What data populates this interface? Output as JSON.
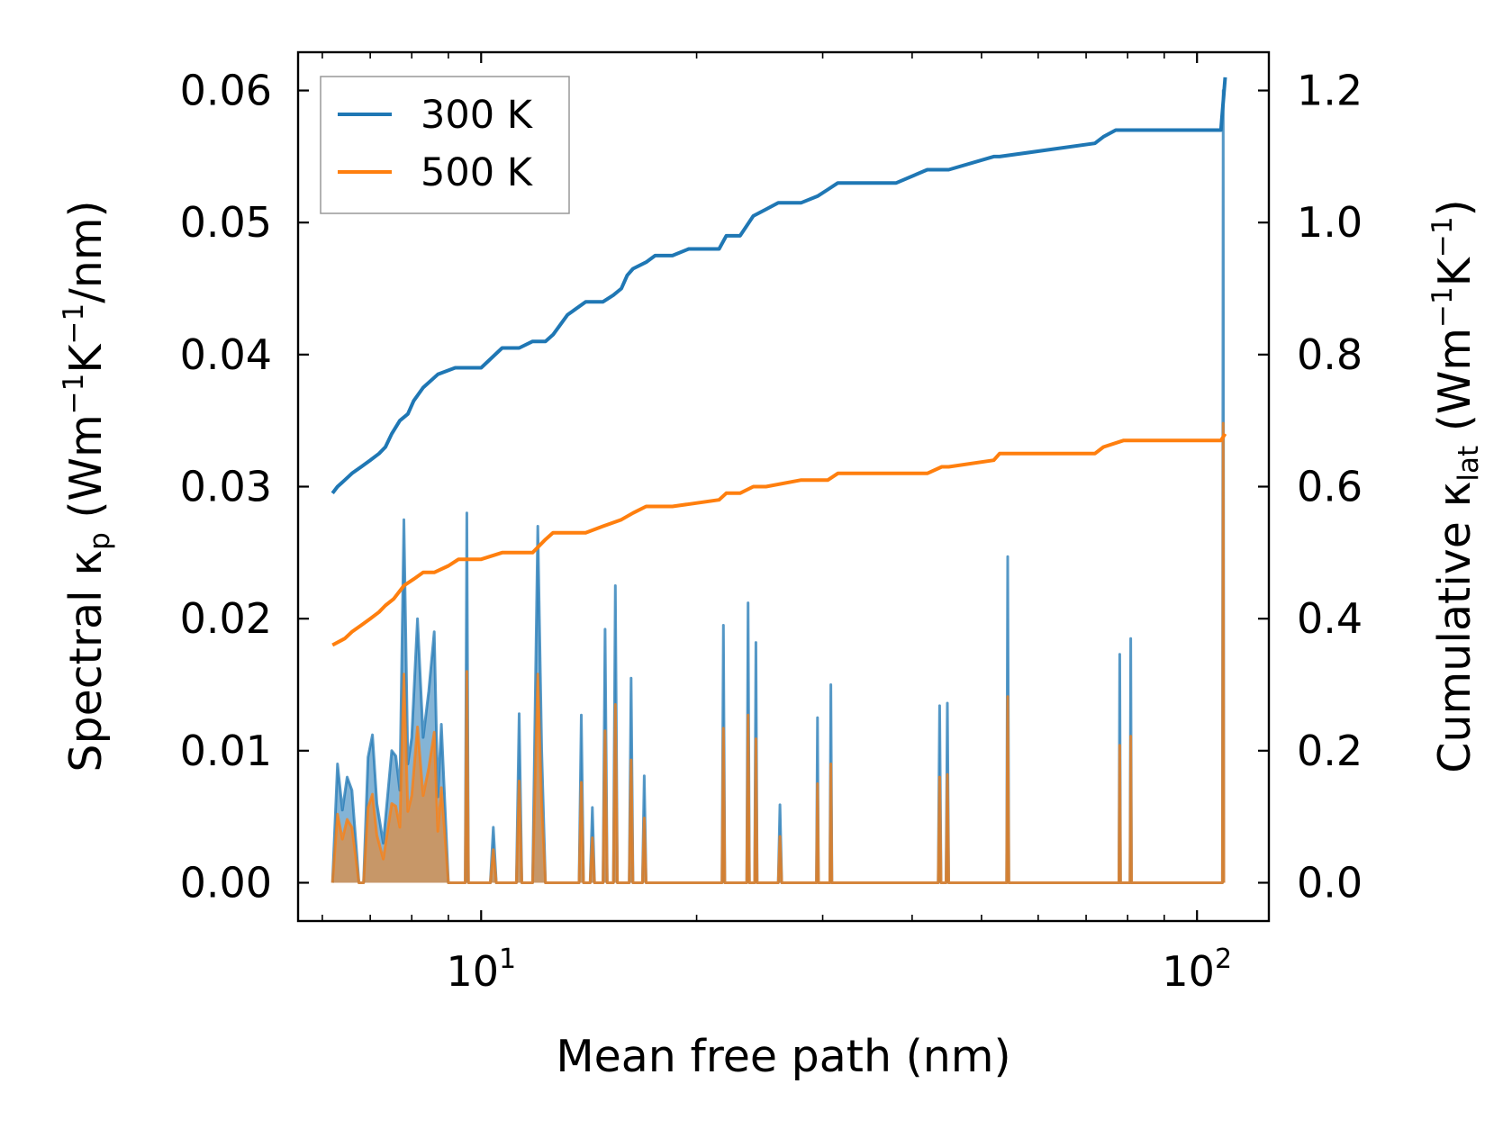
{
  "colors": {
    "series_300K": "#1f77b4",
    "series_500K": "#ff7f0e",
    "fill_300K": "#1f77b4",
    "fill_500K": "#ff7f0e"
  },
  "chart_data": {
    "type": "line",
    "xscale": "log",
    "xlabel": "Mean free path (nm)",
    "ylabel_left": "Spectral κ",
    "ylabel_left_sub": "p",
    "ylabel_left_unit_open": "(Wm",
    "ylabel_left_sup1": "−1",
    "ylabel_left_mid": "K",
    "ylabel_left_sup2": "−1",
    "ylabel_left_unit_close": "/nm)",
    "ylabel_right": "Cumulative κ",
    "ylabel_right_sub": "lat",
    "ylabel_right_unit_open": "(Wm",
    "ylabel_right_sup1": "−1",
    "ylabel_right_mid": "K",
    "ylabel_right_sup2": "−1",
    "ylabel_right_unit_close": ")",
    "xlim": [
      5.55,
      126
    ],
    "ylim_left": [
      -0.0029,
      0.0629
    ],
    "ylim_right": [
      -0.058,
      1.258
    ],
    "x_major_ticks": [
      {
        "value": 10,
        "base": "10",
        "exp": "1"
      },
      {
        "value": 100,
        "base": "10",
        "exp": "2"
      }
    ],
    "x_minor_ticks": [
      6,
      7,
      8,
      9,
      20,
      30,
      40,
      50,
      60,
      70,
      80,
      90
    ],
    "y_left_ticks": [
      {
        "value": 0.0,
        "label": "0.00"
      },
      {
        "value": 0.01,
        "label": "0.01"
      },
      {
        "value": 0.02,
        "label": "0.02"
      },
      {
        "value": 0.03,
        "label": "0.03"
      },
      {
        "value": 0.04,
        "label": "0.04"
      },
      {
        "value": 0.05,
        "label": "0.05"
      },
      {
        "value": 0.06,
        "label": "0.06"
      }
    ],
    "y_right_ticks": [
      {
        "value": 0.0,
        "label": "0.0"
      },
      {
        "value": 0.2,
        "label": "0.2"
      },
      {
        "value": 0.4,
        "label": "0.4"
      },
      {
        "value": 0.6,
        "label": "0.6"
      },
      {
        "value": 0.8,
        "label": "0.8"
      },
      {
        "value": 1.0,
        "label": "1.0"
      },
      {
        "value": 1.2,
        "label": "1.2"
      }
    ],
    "legend": {
      "position": "upper-left",
      "entries": [
        "300 K",
        "500 K"
      ]
    },
    "cumulative_series": [
      {
        "name": "300 K",
        "axis": "right",
        "x": [
          6.2,
          6.3,
          6.45,
          6.6,
          6.8,
          7.0,
          7.2,
          7.35,
          7.5,
          7.7,
          7.9,
          8.05,
          8.3,
          8.7,
          9.2,
          9.6,
          10.0,
          10.7,
          11.3,
          11.8,
          12.3,
          12.6,
          13.2,
          14.0,
          14.3,
          14.8,
          15.3,
          15.7,
          16.0,
          16.3,
          17.0,
          17.5,
          18.5,
          19.5,
          20.0,
          21.5,
          22.0,
          23.0,
          24.0,
          25.0,
          26.0,
          28.0,
          29.5,
          30.5,
          31.5,
          38.0,
          42.0,
          44.0,
          45.0,
          52.0,
          53.0,
          72.0,
          74.0,
          77.0,
          79.0,
          108.0,
          109.5
        ],
        "values": [
          0.59,
          0.6,
          0.61,
          0.62,
          0.63,
          0.64,
          0.65,
          0.66,
          0.68,
          0.7,
          0.71,
          0.73,
          0.75,
          0.77,
          0.78,
          0.78,
          0.78,
          0.81,
          0.81,
          0.82,
          0.82,
          0.83,
          0.86,
          0.88,
          0.88,
          0.88,
          0.89,
          0.9,
          0.92,
          0.93,
          0.94,
          0.95,
          0.95,
          0.96,
          0.96,
          0.96,
          0.98,
          0.98,
          1.01,
          1.02,
          1.03,
          1.03,
          1.04,
          1.05,
          1.06,
          1.06,
          1.08,
          1.08,
          1.08,
          1.1,
          1.1,
          1.12,
          1.13,
          1.14,
          1.14,
          1.14,
          1.22
        ]
      },
      {
        "name": "500 K",
        "axis": "right",
        "x": [
          6.2,
          6.45,
          6.6,
          6.8,
          7.0,
          7.2,
          7.35,
          7.55,
          7.8,
          8.05,
          8.3,
          8.6,
          9.0,
          9.3,
          9.6,
          10.0,
          10.7,
          11.3,
          11.8,
          12.3,
          12.6,
          14.0,
          14.8,
          15.7,
          16.3,
          17.0,
          17.5,
          18.5,
          21.5,
          22.0,
          23.0,
          24.0,
          25.0,
          28.0,
          30.5,
          31.5,
          42.0,
          44.0,
          45.0,
          52.0,
          53.0,
          72.0,
          74.0,
          79.0,
          108.0,
          109.5
        ],
        "values": [
          0.36,
          0.37,
          0.38,
          0.39,
          0.4,
          0.41,
          0.42,
          0.43,
          0.45,
          0.46,
          0.47,
          0.47,
          0.48,
          0.49,
          0.49,
          0.49,
          0.5,
          0.5,
          0.5,
          0.52,
          0.53,
          0.53,
          0.54,
          0.55,
          0.56,
          0.57,
          0.57,
          0.57,
          0.58,
          0.59,
          0.59,
          0.6,
          0.6,
          0.61,
          0.61,
          0.62,
          0.62,
          0.63,
          0.63,
          0.64,
          0.65,
          0.65,
          0.66,
          0.67,
          0.67,
          0.68
        ]
      }
    ],
    "spectral_series": [
      {
        "name": "300 K",
        "axis": "left",
        "x": [
          6.2,
          6.3,
          6.4,
          6.5,
          6.6,
          6.75,
          6.85,
          6.95,
          7.05,
          7.15,
          7.3,
          7.5,
          7.6,
          7.7,
          7.8,
          7.9,
          8.0,
          8.15,
          8.3,
          8.45,
          8.6,
          8.7,
          8.8,
          9.0,
          9.5,
          9.55,
          9.6,
          9.7,
          9.8,
          10.3,
          10.4,
          10.5,
          11.2,
          11.3,
          11.4,
          11.8,
          12.0,
          12.15,
          12.3,
          12.7,
          13.7,
          13.8,
          13.9,
          14.2,
          14.3,
          14.4,
          14.8,
          14.9,
          15.0,
          15.3,
          15.4,
          15.5,
          16.1,
          16.2,
          16.3,
          16.8,
          16.9,
          17.0,
          21.7,
          21.8,
          21.9,
          23.5,
          23.6,
          23.7,
          24.1,
          24.2,
          24.3,
          26.0,
          26.15,
          26.3,
          29.4,
          29.5,
          29.6,
          30.7,
          30.8,
          30.9,
          43.5,
          43.7,
          43.9,
          44.6,
          44.8,
          45.0,
          54.2,
          54.4,
          54.6,
          77.8,
          78.0,
          78.2,
          80.6,
          80.8,
          81.0,
          108.5,
          108.8,
          109.0
        ],
        "values": [
          0.0,
          0.009,
          0.0055,
          0.008,
          0.007,
          0.0,
          0.0,
          0.0095,
          0.0112,
          0.006,
          0.003,
          0.01,
          0.0096,
          0.007,
          0.0275,
          0.009,
          0.011,
          0.02,
          0.011,
          0.0145,
          0.019,
          0.0065,
          0.012,
          0.0,
          0.0,
          0.028,
          0.0,
          0.0,
          0.0,
          0.0,
          0.0042,
          0.0,
          0.0,
          0.0128,
          0.0,
          0.0,
          0.027,
          0.01,
          0.0,
          0.0,
          0.0,
          0.0127,
          0.0,
          0.0,
          0.0057,
          0.0,
          0.0,
          0.0192,
          0.0,
          0.0,
          0.0225,
          0.0,
          0.0,
          0.0155,
          0.0,
          0.0,
          0.0081,
          0.0,
          0.0,
          0.0195,
          0.0,
          0.0,
          0.0212,
          0.0,
          0.0,
          0.0182,
          0.0,
          0.0,
          0.0059,
          0.0,
          0.0,
          0.0125,
          0.0,
          0.0,
          0.015,
          0.0,
          0.0,
          0.0134,
          0.0,
          0.0,
          0.0136,
          0.0,
          0.0,
          0.0247,
          0.0,
          0.0,
          0.0173,
          0.0,
          0.0,
          0.0185,
          0.0,
          0.0,
          0.06,
          0.0
        ]
      },
      {
        "name": "500 K",
        "axis": "left",
        "x": [
          6.2,
          6.3,
          6.4,
          6.5,
          6.6,
          6.75,
          6.85,
          6.95,
          7.05,
          7.15,
          7.3,
          7.5,
          7.6,
          7.7,
          7.8,
          7.9,
          8.0,
          8.15,
          8.3,
          8.45,
          8.6,
          8.7,
          8.8,
          9.0,
          9.5,
          9.55,
          9.6,
          9.7,
          9.8,
          10.3,
          10.4,
          10.5,
          11.2,
          11.3,
          11.4,
          11.8,
          12.0,
          12.15,
          12.3,
          12.7,
          13.7,
          13.8,
          13.9,
          14.2,
          14.3,
          14.4,
          14.8,
          14.9,
          15.0,
          15.3,
          15.4,
          15.5,
          16.1,
          16.2,
          16.3,
          16.8,
          16.9,
          17.0,
          21.7,
          21.8,
          21.9,
          23.5,
          23.6,
          23.7,
          24.1,
          24.2,
          24.3,
          26.0,
          26.15,
          26.3,
          29.4,
          29.5,
          29.6,
          30.7,
          30.8,
          30.9,
          43.5,
          43.7,
          43.9,
          44.6,
          44.8,
          45.0,
          54.2,
          54.4,
          54.6,
          77.8,
          78.0,
          78.2,
          80.6,
          80.8,
          81.0,
          108.5,
          108.8,
          109.0
        ],
        "values": [
          0.0,
          0.0052,
          0.0033,
          0.0048,
          0.0042,
          0.0,
          0.0,
          0.0057,
          0.0067,
          0.0036,
          0.0018,
          0.006,
          0.0058,
          0.0042,
          0.0158,
          0.0054,
          0.0066,
          0.0118,
          0.0066,
          0.0087,
          0.0114,
          0.0039,
          0.0072,
          0.0,
          0.0,
          0.016,
          0.0,
          0.0,
          0.0,
          0.0,
          0.0025,
          0.0,
          0.0,
          0.0077,
          0.0,
          0.0,
          0.0158,
          0.006,
          0.0,
          0.0,
          0.0,
          0.0076,
          0.0,
          0.0,
          0.0034,
          0.0,
          0.0,
          0.0115,
          0.0,
          0.0,
          0.0135,
          0.0,
          0.0,
          0.0093,
          0.0,
          0.0,
          0.0049,
          0.0,
          0.0,
          0.0117,
          0.0,
          0.0,
          0.0127,
          0.0,
          0.0,
          0.0109,
          0.0,
          0.0,
          0.0035,
          0.0,
          0.0,
          0.0075,
          0.0,
          0.0,
          0.009,
          0.0,
          0.0,
          0.008,
          0.0,
          0.0,
          0.0082,
          0.0,
          0.0,
          0.0141,
          0.0,
          0.0,
          0.0104,
          0.0,
          0.0,
          0.0111,
          0.0,
          0.0,
          0.0348,
          0.0
        ]
      }
    ]
  }
}
